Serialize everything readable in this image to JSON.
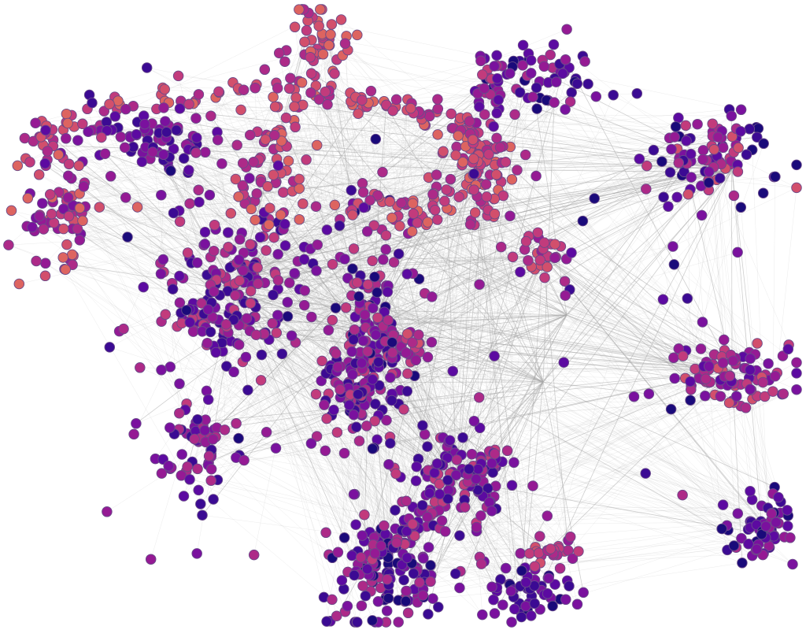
{
  "graph": {
    "palette": [
      "#1a0a7a",
      "#3b0a93",
      "#5c0aa1",
      "#7a119e",
      "#951a94",
      "#ad2a88",
      "#c23b7c",
      "#d24f6c",
      "#dd6460"
    ],
    "node_stroke": "#6a4b8a",
    "edge_color": "#b9b9b9",
    "background": "#ffffff"
  }
}
